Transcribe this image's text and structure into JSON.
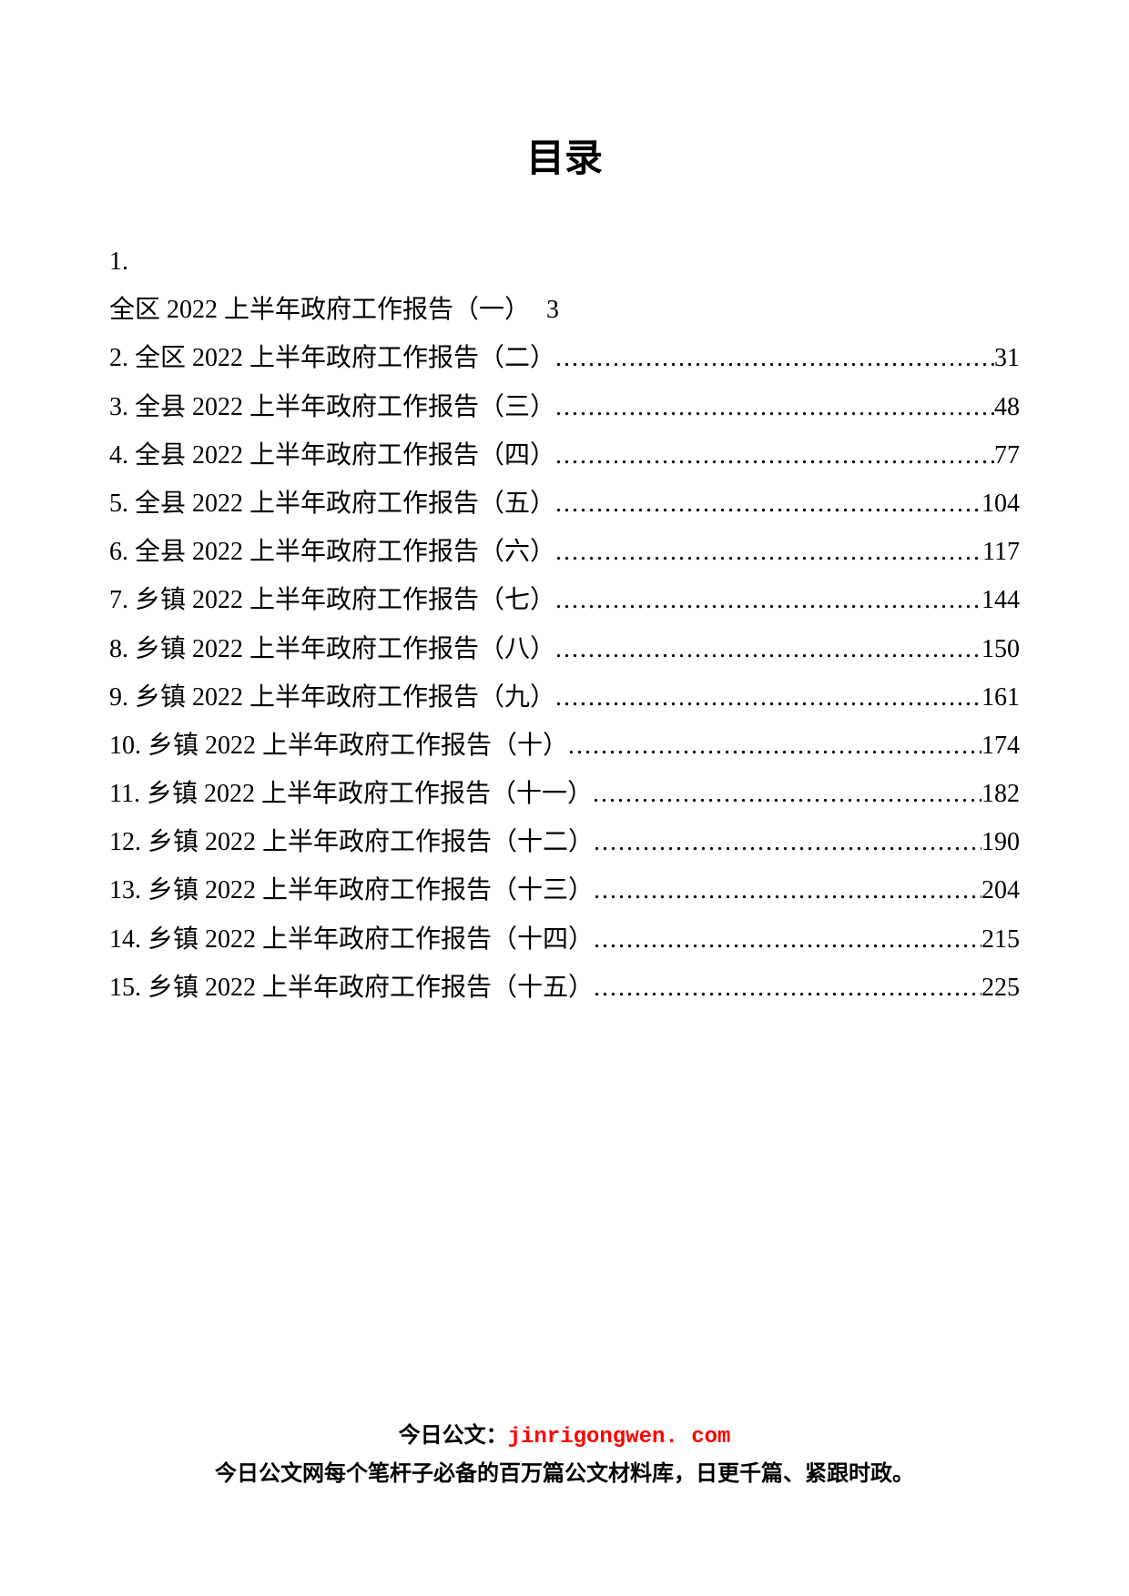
{
  "title": "目录",
  "toc": {
    "first": {
      "num": "1.",
      "title": "全区 2022 上半年政府工作报告（一）",
      "page": "3"
    },
    "entries": [
      {
        "label": "2. 全区 2022 上半年政府工作报告（二）",
        "page": "31"
      },
      {
        "label": "3. 全县 2022 上半年政府工作报告（三）",
        "page": "48"
      },
      {
        "label": "4. 全县 2022 上半年政府工作报告（四）",
        "page": "77"
      },
      {
        "label": "5. 全县 2022 上半年政府工作报告（五）",
        "page": "104"
      },
      {
        "label": "6. 全县 2022 上半年政府工作报告（六）",
        "page": "117"
      },
      {
        "label": "7. 乡镇 2022 上半年政府工作报告（七）",
        "page": "144"
      },
      {
        "label": "8. 乡镇 2022 上半年政府工作报告（八）",
        "page": "150"
      },
      {
        "label": "9. 乡镇 2022 上半年政府工作报告（九）",
        "page": "161"
      },
      {
        "label": "10. 乡镇 2022 上半年政府工作报告（十）",
        "page": "174"
      },
      {
        "label": "11. 乡镇 2022 上半年政府工作报告（十一）",
        "page": "182"
      },
      {
        "label": "12. 乡镇 2022 上半年政府工作报告（十二）",
        "page": "190"
      },
      {
        "label": "13. 乡镇 2022 上半年政府工作报告（十三）",
        "page": "204"
      },
      {
        "label": "14. 乡镇 2022 上半年政府工作报告（十四）",
        "page": "215"
      },
      {
        "label": "15. 乡镇 2022 上半年政府工作报告（十五）",
        "page": "225"
      }
    ]
  },
  "footer": {
    "prefix": "今日公文：",
    "link": "jinrigongwen. com",
    "line2": "今日公文网每个笔杆子必备的百万篇公文材料库，日更千篇、紧跟时政。"
  },
  "colors": {
    "text": "#000000",
    "link": "#ff0000",
    "background": "#ffffff"
  },
  "fonts": {
    "title_size": 42,
    "body_size": 28,
    "footer_size": 24
  }
}
